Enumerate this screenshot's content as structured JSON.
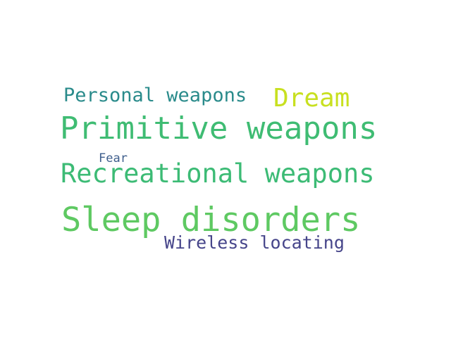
{
  "words": {
    "sleep_disorders": {
      "text": "Sleep disorders",
      "color": "#5ec962"
    },
    "primitive_weapons": {
      "text": "Primitive weapons",
      "color": "#3fbc73"
    },
    "recreational_weapons": {
      "text": "Recreational weapons",
      "color": "#3cbb75"
    },
    "dream": {
      "text": "Dream",
      "color": "#c8e020"
    },
    "personal_weapons": {
      "text": "Personal weapons",
      "color": "#2a8b8b"
    },
    "wireless_locating": {
      "text": "Wireless locating",
      "color": "#46458a"
    },
    "fear": {
      "text": "Fear",
      "color": "#3e5e8c"
    }
  }
}
